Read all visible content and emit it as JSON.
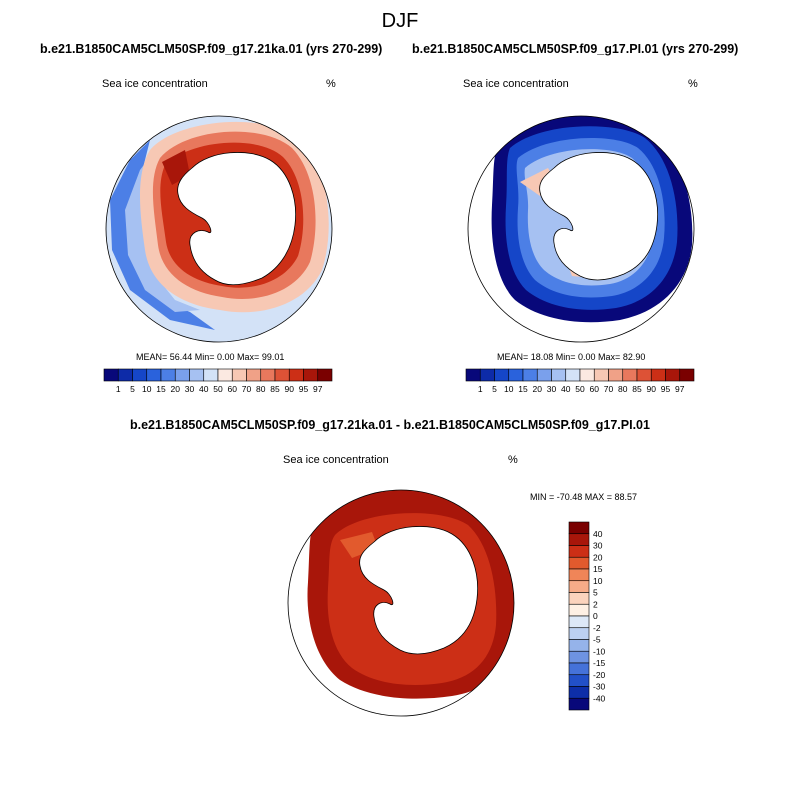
{
  "figure": {
    "title": "DJF"
  },
  "panels": [
    {
      "case": "b.e21.B1850CAM5CLM50SP.f09_g17.21ka.01 (yrs 270-299)",
      "variable": "Sea ice concentration",
      "units": "%",
      "stats": "MEAN=  56.44  Min=   0.00  Max=  99.01",
      "colorbar_labels": [
        "1",
        "5",
        "10",
        "15",
        "20",
        "30",
        "40",
        "50",
        "60",
        "70",
        "80",
        "85",
        "90",
        "95",
        "97"
      ]
    },
    {
      "case": "b.e21.B1850CAM5CLM50SP.f09_g17.PI.01 (yrs 270-299)",
      "variable": "Sea ice concentration",
      "units": "%",
      "stats": "MEAN=  18.08  Min=   0.00  Max=  82.90",
      "colorbar_labels": [
        "1",
        "5",
        "10",
        "15",
        "20",
        "30",
        "40",
        "50",
        "60",
        "70",
        "80",
        "85",
        "90",
        "95",
        "97"
      ]
    },
    {
      "case": "b.e21.B1850CAM5CLM50SP.f09_g17.21ka.01 - b.e21.B1850CAM5CLM50SP.f09_g17.PI.01",
      "variable": "Sea ice concentration",
      "units": "%",
      "stats": "MIN = -70.48 MAX =  88.57",
      "colorbar_labels": [
        "40",
        "30",
        "20",
        "15",
        "10",
        "5",
        "2",
        "0",
        "-2",
        "-5",
        "-10",
        "-15",
        "-20",
        "-30",
        "-40"
      ]
    }
  ],
  "palettes": {
    "concentration": [
      "#08087a",
      "#0d2ba8",
      "#1546c8",
      "#2a62dc",
      "#4c7fe6",
      "#7aa0ec",
      "#a6c1f2",
      "#d3e2f7",
      "#fbe9e1",
      "#f7c8b4",
      "#f0a187",
      "#e8785d",
      "#dd5236",
      "#cc2f16",
      "#a8160a",
      "#7a0000"
    ],
    "difference": [
      "#7a0000",
      "#a8160a",
      "#cc2f16",
      "#e25a2d",
      "#f08558",
      "#f6ab88",
      "#fbd3bd",
      "#fef0e4",
      "#dde8f7",
      "#bcd0f1",
      "#95b3ea",
      "#6e93e2",
      "#4572d9",
      "#2250c8",
      "#0d2ea8",
      "#08087a"
    ],
    "land": "#ffffff"
  }
}
